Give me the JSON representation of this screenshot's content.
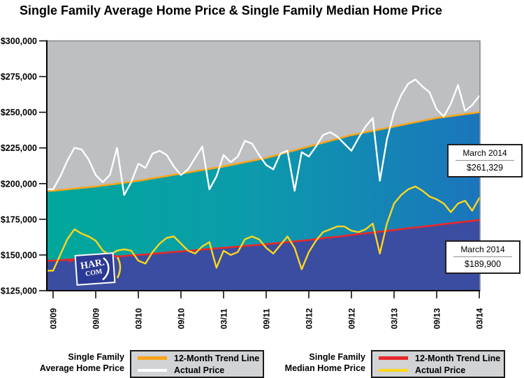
{
  "title": "Single Family Average Home Price & Single Family Median Home Price",
  "logo": {
    "line1": "HAR.",
    "line2": "COM"
  },
  "callouts": [
    {
      "label": "March 2014",
      "value": "$261,329"
    },
    {
      "label": "March 2014",
      "value": "$189,900"
    }
  ],
  "legend": {
    "groups": [
      {
        "name_line1": "Single Family",
        "name_line2": "Average Home Price",
        "items": [
          {
            "label": "12-Month Trend Line",
            "color": "#f9a51b"
          },
          {
            "label": "Actual Price",
            "color": "#ffffff"
          }
        ]
      },
      {
        "name_line1": "Single Family",
        "name_line2": "Median Home Price",
        "items": [
          {
            "label": "12-Month Trend Line",
            "color": "#e8282b"
          },
          {
            "label": "Actual Price",
            "color": "#ffd71c"
          }
        ]
      }
    ]
  },
  "chart_data": {
    "type": "area",
    "title": "Single Family Average Home Price & Single Family Median Home Price",
    "xlabel": "",
    "ylabel": "",
    "ylim": [
      125000,
      300000
    ],
    "grid": false,
    "legend_position": "bottom",
    "y_tick_labels": [
      "$300,000",
      "$275,000",
      "$250,000",
      "$225,000",
      "$200,000",
      "$175,000",
      "$150,000",
      "$125,000"
    ],
    "x_tick_labels": [
      "03/09",
      "09/09",
      "03/10",
      "09/10",
      "03/11",
      "09/11",
      "03/12",
      "09/12",
      "03/13",
      "09/13",
      "03/14"
    ],
    "x": [
      "03/09",
      "04/09",
      "05/09",
      "06/09",
      "07/09",
      "08/09",
      "09/09",
      "10/09",
      "11/09",
      "12/09",
      "01/10",
      "02/10",
      "03/10",
      "04/10",
      "05/10",
      "06/10",
      "07/10",
      "08/10",
      "09/10",
      "10/10",
      "11/10",
      "12/10",
      "01/11",
      "02/11",
      "03/11",
      "04/11",
      "05/11",
      "06/11",
      "07/11",
      "08/11",
      "09/11",
      "10/11",
      "11/11",
      "12/11",
      "01/12",
      "02/12",
      "03/12",
      "04/12",
      "05/12",
      "06/12",
      "07/12",
      "08/12",
      "09/12",
      "10/12",
      "11/12",
      "12/12",
      "01/13",
      "02/13",
      "03/13",
      "04/13",
      "05/13",
      "06/13",
      "07/13",
      "08/13",
      "09/13",
      "10/13",
      "11/13",
      "12/13",
      "01/14",
      "02/14",
      "03/14"
    ],
    "series": [
      {
        "name": "Single Family Average Home Price - 12-Month Trend Line",
        "color": "#f9a51b",
        "role": "trend-upper-area-edge",
        "values": [
          195000,
          195500,
          196000,
          196500,
          197000,
          197500,
          198000,
          198700,
          199300,
          200000,
          200700,
          201300,
          202000,
          202800,
          203700,
          204500,
          205300,
          206200,
          207000,
          207800,
          208700,
          209500,
          210300,
          211200,
          212000,
          213000,
          214000,
          215000,
          216000,
          217000,
          218000,
          219300,
          220700,
          222000,
          223300,
          224700,
          226000,
          227300,
          228700,
          230000,
          231300,
          232700,
          234000,
          235000,
          236000,
          237000,
          238000,
          239000,
          240000,
          241000,
          242000,
          243000,
          244000,
          245000,
          246000,
          246700,
          247300,
          248000,
          248700,
          249300,
          250000
        ]
      },
      {
        "name": "Single Family Average Home Price - Actual Price",
        "color": "#ffffff",
        "role": "actual-line",
        "end_annotation": "$261,329",
        "values": [
          196000,
          205000,
          216000,
          225000,
          224000,
          217000,
          206000,
          201000,
          206000,
          225000,
          192000,
          201000,
          214000,
          211000,
          221000,
          223000,
          220000,
          212000,
          206000,
          210000,
          218000,
          226000,
          196000,
          205000,
          220000,
          215000,
          219000,
          230000,
          228000,
          220000,
          213000,
          210000,
          221000,
          223000,
          195000,
          222000,
          219000,
          226000,
          234000,
          236000,
          233000,
          228000,
          223000,
          232000,
          240000,
          246000,
          202000,
          231000,
          250000,
          262000,
          270000,
          273000,
          268000,
          264000,
          252000,
          247000,
          256000,
          269000,
          251000,
          255000,
          261329
        ]
      },
      {
        "name": "Single Family Median Home Price - 12-Month Trend Line",
        "color": "#e8282b",
        "role": "trend-lower-area-edge",
        "values": [
          146000,
          146300,
          146700,
          147000,
          147300,
          147700,
          148000,
          148300,
          148700,
          149000,
          149300,
          149700,
          150000,
          150400,
          150800,
          151300,
          151700,
          152100,
          152500,
          152900,
          153300,
          153800,
          154200,
          154600,
          155000,
          155400,
          155800,
          156300,
          156700,
          157100,
          157500,
          158000,
          158500,
          159000,
          159500,
          160000,
          160500,
          161100,
          161700,
          162300,
          162800,
          163400,
          164000,
          164600,
          165200,
          165800,
          166300,
          166900,
          167500,
          168100,
          168700,
          169300,
          169800,
          170400,
          171000,
          171600,
          172200,
          172800,
          173300,
          173900,
          174500
        ]
      },
      {
        "name": "Single Family Median Home Price - Actual Price",
        "color": "#ffd71c",
        "role": "actual-line",
        "end_annotation": "$189,900",
        "values": [
          139000,
          150000,
          161000,
          168000,
          165000,
          163000,
          160000,
          153000,
          150000,
          153000,
          154000,
          153000,
          146000,
          144000,
          152000,
          158000,
          162000,
          163000,
          158000,
          153000,
          151000,
          156000,
          159000,
          141000,
          153000,
          150000,
          152000,
          161000,
          163000,
          161000,
          155000,
          151000,
          157000,
          163000,
          155000,
          140000,
          152000,
          160000,
          166000,
          168000,
          170000,
          170000,
          167000,
          166000,
          168000,
          172000,
          151000,
          172000,
          186000,
          192000,
          196000,
          198000,
          195000,
          191000,
          189000,
          186000,
          180000,
          186000,
          188000,
          181000,
          189900
        ]
      }
    ],
    "colors": {
      "plot_background_above_trend": "#bdbfc1",
      "avg_area_gradient_left": "#00a79a",
      "avg_area_gradient_right": "#1b75bc",
      "median_area": "#3a4da0",
      "axis": "#000000"
    }
  }
}
